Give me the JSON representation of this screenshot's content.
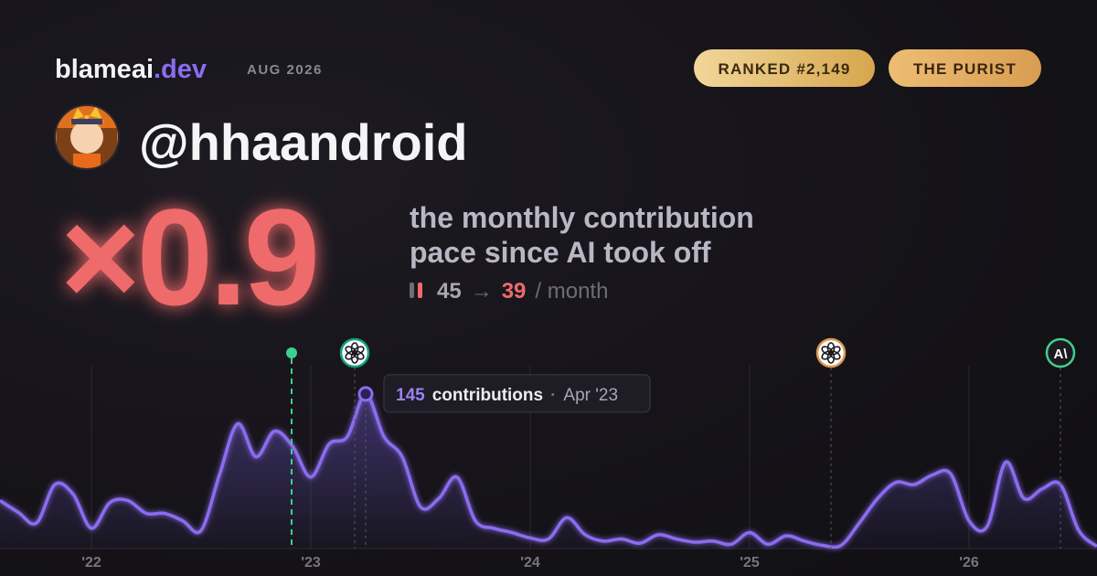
{
  "header": {
    "brand": "blameai",
    "brand_suffix": ".dev",
    "period": "AUG 2026",
    "badges": [
      "RANKED #2,149",
      "THE PURIST"
    ],
    "handle": "@hhaandroid"
  },
  "multiplier": "×0.9",
  "description": [
    "the monthly contribution",
    "pace since AI took off"
  ],
  "pace": {
    "before": 45,
    "arrow": "→",
    "after": 39,
    "unit": "/ month"
  },
  "chart_data": {
    "type": "area",
    "categories": [
      null,
      null,
      null,
      null,
      null,
      "'22",
      null,
      null,
      null,
      null,
      null,
      null,
      null,
      null,
      null,
      null,
      null,
      "'23",
      null,
      null,
      null,
      null,
      null,
      null,
      null,
      null,
      null,
      null,
      null,
      "'24",
      null,
      null,
      null,
      null,
      null,
      null,
      null,
      null,
      null,
      null,
      null,
      "'25",
      null,
      null,
      null,
      null,
      null,
      null,
      null,
      null,
      null,
      null,
      null,
      "'26",
      null,
      null,
      null,
      null,
      null,
      null,
      null
    ],
    "series": [
      {
        "color": "#8b6cf0",
        "values": [
          45,
          34,
          24,
          60,
          51,
          19,
          43,
          45,
          33,
          33,
          26,
          17,
          69,
          117,
          86,
          110,
          96,
          67,
          98,
          105,
          145,
          105,
          86,
          39,
          47,
          67,
          26,
          19,
          15,
          10,
          9,
          29,
          13,
          7,
          9,
          5,
          13,
          9,
          6,
          7,
          4,
          15,
          4,
          12,
          7,
          3,
          3,
          24,
          47,
          62,
          60,
          69,
          70,
          26,
          21,
          81,
          47,
          56,
          60,
          17,
          2
        ]
      }
    ],
    "ylim": [
      0,
      180
    ],
    "markers": [
      {
        "x": 15.95,
        "kind": "dot",
        "color": "#3ecf8e"
      },
      {
        "x": 19.4,
        "kind": "openai",
        "color": "#10a37f"
      },
      {
        "x": 45.45,
        "kind": "openai",
        "color": "#d99a4e"
      },
      {
        "x": 58,
        "kind": "anthropic",
        "color": "#3ecf8e",
        "label": "A\\"
      }
    ],
    "tooltip": {
      "value": 145,
      "unit": "contributions",
      "date": "Apr '23"
    }
  }
}
